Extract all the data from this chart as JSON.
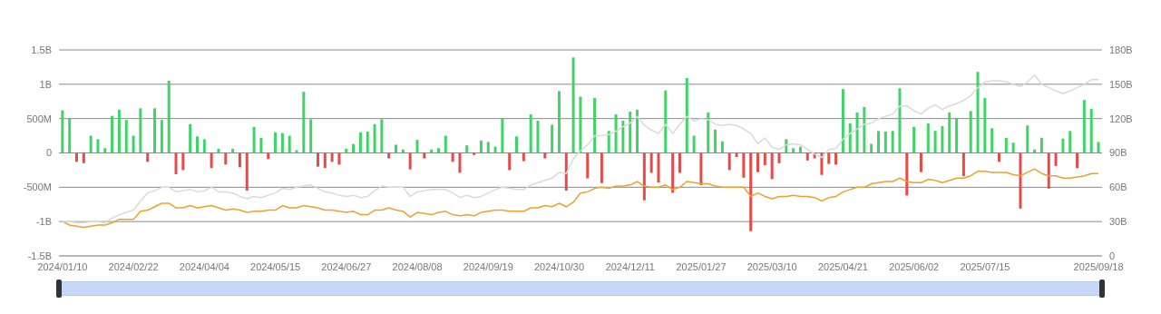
{
  "chart_data": {
    "type": "bar",
    "categories": [
      "2024/01/10",
      null,
      null,
      null,
      null,
      null,
      null,
      null,
      null,
      null,
      "2024/02/22",
      null,
      null,
      null,
      null,
      null,
      null,
      null,
      null,
      null,
      "2024/04/04",
      null,
      null,
      null,
      null,
      null,
      null,
      null,
      null,
      null,
      "2024/05/15",
      null,
      null,
      null,
      null,
      null,
      null,
      null,
      null,
      null,
      "2024/06/27",
      null,
      null,
      null,
      null,
      null,
      null,
      null,
      null,
      null,
      "2024/08/08",
      null,
      null,
      null,
      null,
      null,
      null,
      null,
      null,
      null,
      "2024/09/19",
      null,
      null,
      null,
      null,
      null,
      null,
      null,
      null,
      null,
      "2024/10/30",
      null,
      null,
      null,
      null,
      null,
      null,
      null,
      null,
      null,
      "2024/12/11",
      null,
      null,
      null,
      null,
      null,
      null,
      null,
      null,
      null,
      "2025/01/27",
      null,
      null,
      null,
      null,
      null,
      null,
      null,
      null,
      null,
      "2025/03/10",
      null,
      null,
      null,
      null,
      null,
      null,
      null,
      null,
      null,
      "2025/04/21",
      null,
      null,
      null,
      null,
      null,
      null,
      null,
      null,
      null,
      "2025/06/02",
      null,
      null,
      null,
      null,
      null,
      null,
      null,
      null,
      null,
      "2025/07/15",
      null,
      null,
      null,
      null,
      null,
      null,
      null,
      null,
      null,
      null,
      null,
      null,
      null,
      null,
      null,
      "2025/09/18"
    ],
    "series": [
      {
        "values": [
          620000000,
          500000000,
          -130000000,
          -150000000,
          250000000,
          200000000,
          70000000,
          540000000,
          630000000,
          480000000,
          250000000,
          650000000,
          -130000000,
          650000000,
          480000000,
          1050000000,
          -310000000,
          -250000000,
          420000000,
          240000000,
          200000000,
          -220000000,
          60000000,
          -170000000,
          60000000,
          -210000000,
          -550000000,
          380000000,
          220000000,
          -90000000,
          300000000,
          290000000,
          250000000,
          40000000,
          890000000,
          490000000,
          -200000000,
          -220000000,
          -130000000,
          -170000000,
          60000000,
          130000000,
          300000000,
          310000000,
          420000000,
          490000000,
          -80000000,
          120000000,
          50000000,
          -240000000,
          190000000,
          -80000000,
          50000000,
          70000000,
          250000000,
          -130000000,
          -290000000,
          110000000,
          -30000000,
          180000000,
          160000000,
          90000000,
          500000000,
          -250000000,
          240000000,
          -120000000,
          560000000,
          470000000,
          -80000000,
          410000000,
          900000000,
          -550000000,
          1390000000,
          820000000,
          -370000000,
          800000000,
          -440000000,
          320000000,
          560000000,
          470000000,
          600000000,
          630000000,
          -690000000,
          -290000000,
          -430000000,
          910000000,
          -580000000,
          -290000000,
          1090000000,
          250000000,
          -470000000,
          590000000,
          340000000,
          170000000,
          -250000000,
          -60000000,
          -360000000,
          -1140000000,
          -280000000,
          -180000000,
          -380000000,
          -150000000,
          200000000,
          70000000,
          90000000,
          -110000000,
          -80000000,
          -320000000,
          -160000000,
          -170000000,
          930000000,
          430000000,
          590000000,
          670000000,
          130000000,
          320000000,
          310000000,
          320000000,
          940000000,
          -620000000,
          380000000,
          -280000000,
          430000000,
          320000000,
          390000000,
          590000000,
          500000000,
          -340000000,
          610000000,
          1180000000,
          800000000,
          360000000,
          -130000000,
          220000000,
          150000000,
          -810000000,
          400000000,
          50000000,
          220000000,
          -520000000,
          -190000000,
          210000000,
          320000000,
          -220000000,
          770000000,
          640000000,
          160000000
        ],
        "colors": [
          "#3fd465",
          "#3fd465",
          "#e84a4a",
          "#e84a4a",
          "#3fd465",
          "#3fd465",
          "#3fd465",
          "#3fd465",
          "#3fd465",
          "#3fd465",
          "#3fd465",
          "#3fd465",
          "#e84a4a",
          "#3fd465",
          "#3fd465",
          "#3fd465",
          "#e84a4a",
          "#e84a4a",
          "#3fd465",
          "#3fd465",
          "#3fd465",
          "#e84a4a",
          "#3fd465",
          "#e84a4a",
          "#3fd465",
          "#e84a4a",
          "#e84a4a",
          "#3fd465",
          "#3fd465",
          "#e84a4a",
          "#3fd465",
          "#3fd465",
          "#3fd465",
          "#3fd465",
          "#3fd465",
          "#3fd465",
          "#e84a4a",
          "#e84a4a",
          "#e84a4a",
          "#e84a4a",
          "#3fd465",
          "#3fd465",
          "#3fd465",
          "#3fd465",
          "#3fd465",
          "#3fd465",
          "#e84a4a",
          "#3fd465",
          "#3fd465",
          "#e84a4a",
          "#3fd465",
          "#e84a4a",
          "#3fd465",
          "#3fd465",
          "#3fd465",
          "#e84a4a",
          "#e84a4a",
          "#3fd465",
          "#e84a4a",
          "#3fd465",
          "#3fd465",
          "#3fd465",
          "#3fd465",
          "#e84a4a",
          "#3fd465",
          "#e84a4a",
          "#3fd465",
          "#3fd465",
          "#e84a4a",
          "#3fd465",
          "#3fd465",
          "#e84a4a",
          "#3fd465",
          "#3fd465",
          "#e84a4a",
          "#3fd465",
          "#e84a4a",
          "#3fd465",
          "#3fd465",
          "#3fd465",
          "#3fd465",
          "#3fd465",
          "#e84a4a",
          "#e84a4a",
          "#e84a4a",
          "#3fd465",
          "#e84a4a",
          "#e84a4a",
          "#3fd465",
          "#3fd465",
          "#e84a4a",
          "#3fd465",
          "#3fd465",
          "#3fd465",
          "#e84a4a",
          "#e84a4a",
          "#e84a4a",
          "#e84a4a",
          "#e84a4a",
          "#e84a4a",
          "#e84a4a",
          "#e84a4a",
          "#3fd465",
          "#3fd465",
          "#3fd465",
          "#e84a4a",
          "#e84a4a",
          "#e84a4a",
          "#e84a4a",
          "#e84a4a",
          "#3fd465",
          "#3fd465",
          "#3fd465",
          "#3fd465",
          "#3fd465",
          "#3fd465",
          "#3fd465",
          "#3fd465",
          "#3fd465",
          "#e84a4a",
          "#3fd465",
          "#e84a4a",
          "#3fd465",
          "#3fd465",
          "#3fd465",
          "#3fd465",
          "#3fd465",
          "#e84a4a",
          "#3fd465",
          "#3fd465",
          "#3fd465",
          "#3fd465",
          "#e84a4a",
          "#3fd465",
          "#3fd465",
          "#e84a4a",
          "#3fd465",
          "#3fd465",
          "#3fd465",
          "#e84a4a",
          "#e84a4a",
          "#3fd465",
          "#3fd465",
          "#e84a4a",
          "#3fd465",
          "#3fd465",
          "#3fd465"
        ]
      },
      {
        "type": "line",
        "axis": "y2",
        "color": "#f0a030",
        "values": [
          30000000000,
          27000000000,
          26000000000,
          25000000000,
          26000000000,
          27000000000,
          27000000000,
          29000000000,
          32000000000,
          32000000000,
          32000000000,
          39000000000,
          40000000000,
          43000000000,
          46000000000,
          46000000000,
          42000000000,
          42000000000,
          44000000000,
          42000000000,
          43000000000,
          44000000000,
          42000000000,
          40000000000,
          41000000000,
          40000000000,
          38000000000,
          39000000000,
          39000000000,
          40000000000,
          40000000000,
          44000000000,
          42000000000,
          42000000000,
          44000000000,
          43000000000,
          42000000000,
          40000000000,
          40000000000,
          39000000000,
          38000000000,
          39000000000,
          36000000000,
          36000000000,
          40000000000,
          40000000000,
          42000000000,
          40000000000,
          39000000000,
          34000000000,
          38000000000,
          37000000000,
          36000000000,
          38000000000,
          39000000000,
          36000000000,
          35000000000,
          36000000000,
          35000000000,
          38000000000,
          39000000000,
          40000000000,
          40000000000,
          39000000000,
          39000000000,
          39000000000,
          42000000000,
          42000000000,
          44000000000,
          43000000000,
          46000000000,
          43000000000,
          47000000000,
          55000000000,
          56000000000,
          59000000000,
          60000000000,
          59000000000,
          61000000000,
          61000000000,
          62000000000,
          65000000000,
          61000000000,
          60000000000,
          60000000000,
          62000000000,
          58000000000,
          60000000000,
          65000000000,
          64000000000,
          63000000000,
          63000000000,
          61000000000,
          60000000000,
          60000000000,
          60000000000,
          60000000000,
          52000000000,
          55000000000,
          52000000000,
          50000000000,
          52000000000,
          52000000000,
          53000000000,
          52000000000,
          52000000000,
          51000000000,
          48000000000,
          51000000000,
          52000000000,
          56000000000,
          58000000000,
          60000000000,
          60000000000,
          63000000000,
          64000000000,
          65000000000,
          65000000000,
          68000000000,
          65000000000,
          64000000000,
          64000000000,
          67000000000,
          66000000000,
          64000000000,
          66000000000,
          68000000000,
          68000000000,
          70000000000,
          74000000000,
          74000000000,
          73000000000,
          73000000000,
          73000000000,
          71000000000,
          70000000000,
          73000000000,
          76000000000,
          72000000000,
          70000000000,
          70000000000,
          68000000000,
          68000000000,
          69000000000,
          70000000000,
          72000000000,
          72000000000
        ]
      },
      {
        "type": "line",
        "axis": "y2",
        "color": "#dadada",
        "values": [
          30000000000,
          30000000000,
          29000000000,
          29000000000,
          30000000000,
          30000000000,
          29000000000,
          33000000000,
          36000000000,
          38000000000,
          40000000000,
          48000000000,
          55000000000,
          57000000000,
          60000000000,
          60000000000,
          56000000000,
          57000000000,
          58000000000,
          56000000000,
          57000000000,
          60000000000,
          56000000000,
          56000000000,
          55000000000,
          52000000000,
          50000000000,
          52000000000,
          51000000000,
          53000000000,
          55000000000,
          59000000000,
          58000000000,
          60000000000,
          61000000000,
          62000000000,
          59000000000,
          56000000000,
          55000000000,
          53000000000,
          52000000000,
          53000000000,
          51000000000,
          52000000000,
          57000000000,
          61000000000,
          60000000000,
          60000000000,
          60000000000,
          52000000000,
          56000000000,
          57000000000,
          58000000000,
          58000000000,
          58000000000,
          55000000000,
          51000000000,
          53000000000,
          51000000000,
          52000000000,
          55000000000,
          58000000000,
          60000000000,
          59000000000,
          58000000000,
          58000000000,
          62000000000,
          64000000000,
          66000000000,
          68000000000,
          73000000000,
          72000000000,
          85000000000,
          92000000000,
          97000000000,
          105000000000,
          105000000000,
          106000000000,
          109000000000,
          113000000000,
          116000000000,
          122000000000,
          114000000000,
          110000000000,
          107000000000,
          115000000000,
          107000000000,
          115000000000,
          122000000000,
          118000000000,
          120000000000,
          119000000000,
          115000000000,
          114000000000,
          115000000000,
          114000000000,
          111000000000,
          107000000000,
          98000000000,
          103000000000,
          95000000000,
          93000000000,
          97000000000,
          98000000000,
          97000000000,
          93000000000,
          89000000000,
          86000000000,
          93000000000,
          94000000000,
          102000000000,
          107000000000,
          111000000000,
          115000000000,
          116000000000,
          120000000000,
          122000000000,
          124000000000,
          131000000000,
          131000000000,
          127000000000,
          124000000000,
          129000000000,
          132000000000,
          128000000000,
          131000000000,
          133000000000,
          136000000000,
          140000000000,
          147000000000,
          152000000000,
          153000000000,
          153000000000,
          152000000000,
          150000000000,
          148000000000,
          152000000000,
          158000000000,
          150000000000,
          147000000000,
          144000000000,
          142000000000,
          144000000000,
          147000000000,
          150000000000,
          154000000000,
          154000000000
        ]
      }
    ],
    "ylim": [
      -1500000000,
      1500000000
    ],
    "yticks": [
      {
        "value": -1500000000,
        "label": "-1.5B"
      },
      {
        "value": -1000000000,
        "label": "-1B"
      },
      {
        "value": -500000000,
        "label": "-500M"
      },
      0,
      {
        "value": 500000000,
        "label": "500M"
      },
      {
        "value": 1000000000,
        "label": "1B"
      },
      {
        "value": 1500000000,
        "label": "1.5B"
      }
    ],
    "y2lim": [
      0,
      180000000000
    ],
    "y2ticks": [
      0,
      {
        "value": 30000000000,
        "label": "30B"
      },
      {
        "value": 60000000000,
        "label": "60B"
      },
      {
        "value": 90000000000,
        "label": "90B"
      },
      {
        "value": 120000000000,
        "label": "120B"
      },
      {
        "value": 150000000000,
        "label": "150B"
      },
      {
        "value": 180000000000,
        "label": "180B"
      }
    ],
    "grid": "y",
    "legend": false,
    "marker": "none",
    "line_style": "solid"
  }
}
